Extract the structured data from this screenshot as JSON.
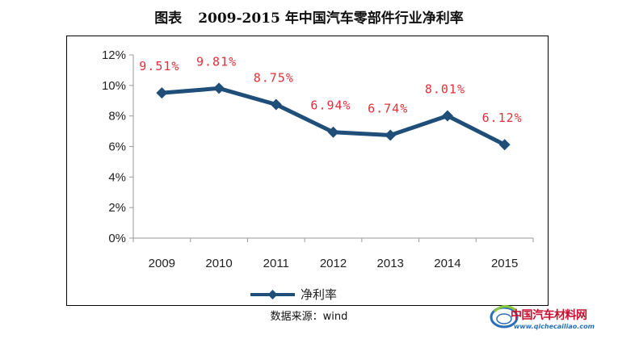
{
  "header": {
    "title_prefix": "图表",
    "title_main": "2009-2015 年中国汽车零部件行业净利率"
  },
  "chart_data": {
    "type": "line",
    "categories": [
      "2009",
      "2010",
      "2011",
      "2012",
      "2013",
      "2014",
      "2015"
    ],
    "series": [
      {
        "name": "净利率",
        "values": [
          9.51,
          9.81,
          8.75,
          6.94,
          6.74,
          8.01,
          6.12
        ],
        "labels": [
          "9.51%",
          "9.81%",
          "8.75%",
          "6.94%",
          "6.74%",
          "8.01%",
          "6.12%"
        ],
        "color": "#1f4e79"
      }
    ],
    "y_ticks": [
      "0%",
      "2%",
      "4%",
      "6%",
      "8%",
      "10%",
      "12%"
    ],
    "ylim": [
      0,
      12
    ],
    "grid": false,
    "legend_position": "bottom-left",
    "label_color": "#e0303a"
  },
  "footer": {
    "source": "数据来源：wind"
  },
  "watermark": {
    "site_name": "中国汽车材料网",
    "url": "www.qichecailiao.com",
    "brand_color": "#c8102e",
    "accent_color": "#2a6fb5"
  }
}
